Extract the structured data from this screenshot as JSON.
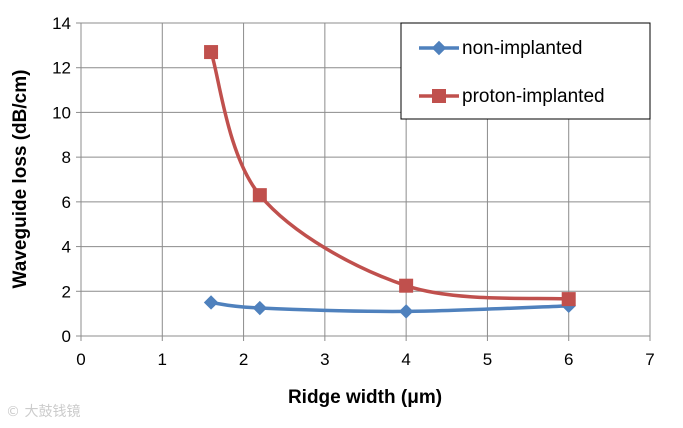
{
  "chart_data": {
    "type": "line",
    "xlabel": "Ridge width (μm)",
    "ylabel": "Waveguide loss (dB/cm)",
    "xlim": [
      0,
      7
    ],
    "ylim": [
      0,
      14
    ],
    "xticks": [
      0,
      1,
      2,
      3,
      4,
      5,
      6,
      7
    ],
    "yticks": [
      0,
      2,
      4,
      6,
      8,
      10,
      12,
      14
    ],
    "grid": true,
    "legend_position": "top-right",
    "series": [
      {
        "name": "non-implanted",
        "color": "#4f81bd",
        "marker": "diamond",
        "smooth": true,
        "x": [
          1.6,
          2.2,
          4,
          6
        ],
        "y": [
          1.5,
          1.25,
          1.1,
          1.35
        ]
      },
      {
        "name": "proton-implanted",
        "color": "#c0504d",
        "marker": "square",
        "smooth": true,
        "x": [
          1.6,
          2.2,
          4,
          6
        ],
        "y": [
          12.7,
          6.3,
          2.25,
          1.65
        ]
      }
    ]
  },
  "watermark": "© 大鼓钱镜"
}
